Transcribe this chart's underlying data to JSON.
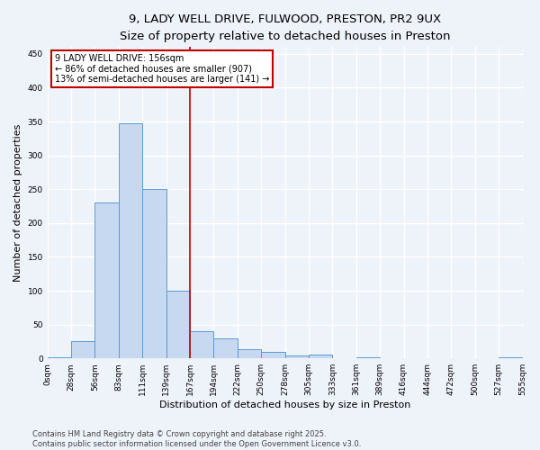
{
  "title_line1": "9, LADY WELL DRIVE, FULWOOD, PRESTON, PR2 9UX",
  "title_line2": "Size of property relative to detached houses in Preston",
  "xlabel": "Distribution of detached houses by size in Preston",
  "ylabel": "Number of detached properties",
  "bin_labels": [
    "0sqm",
    "28sqm",
    "56sqm",
    "83sqm",
    "111sqm",
    "139sqm",
    "167sqm",
    "194sqm",
    "222sqm",
    "250sqm",
    "278sqm",
    "305sqm",
    "333sqm",
    "361sqm",
    "389sqm",
    "416sqm",
    "444sqm",
    "472sqm",
    "500sqm",
    "527sqm",
    "555sqm"
  ],
  "bar_values": [
    2,
    25,
    230,
    348,
    250,
    100,
    40,
    30,
    13,
    10,
    4,
    5,
    0,
    2,
    0,
    0,
    0,
    0,
    0,
    2
  ],
  "bar_color": "#c6d9f0",
  "bar_edge_color": "#5b9bd5",
  "vline_x": 6,
  "vline_color": "#c00000",
  "annotation_text": "9 LADY WELL DRIVE: 156sqm\n← 86% of detached houses are smaller (907)\n13% of semi-detached houses are larger (141) →",
  "annotation_box_color": "white",
  "annotation_border_color": "#c00000",
  "ylim": [
    0,
    460
  ],
  "yticks": [
    0,
    50,
    100,
    150,
    200,
    250,
    300,
    350,
    400,
    450
  ],
  "footnote": "Contains HM Land Registry data © Crown copyright and database right 2025.\nContains public sector information licensed under the Open Government Licence v3.0.",
  "background_color": "#eef2f9",
  "grid_color": "white",
  "title_fontsize": 9.5,
  "subtitle_fontsize": 8.5,
  "axis_label_fontsize": 8,
  "tick_label_fontsize": 6.5,
  "annotation_fontsize": 7,
  "footnote_fontsize": 6
}
